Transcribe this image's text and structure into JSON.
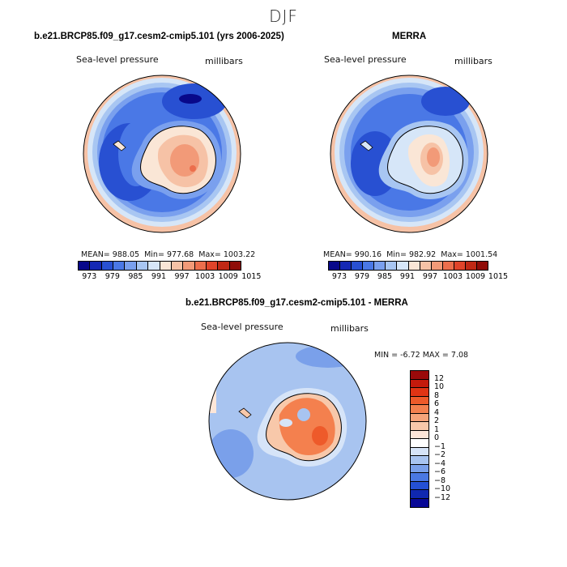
{
  "season": "DJF",
  "panels": {
    "model": {
      "title": "b.e21.BRCP85.f09_g17.cesm2-cmip5.101 (yrs 2006-2025)",
      "variable": "Sea-level pressure",
      "units": "millibars",
      "mean_label": "MEAN=",
      "mean": "988.05",
      "min_label": "Min=",
      "min": "977.68",
      "max_label": "Max=",
      "max": "1003.22"
    },
    "obs": {
      "title": "MERRA",
      "variable": "Sea-level pressure",
      "units": "millibars",
      "mean_label": "MEAN=",
      "mean": "990.16",
      "min_label": "Min=",
      "min": "982.92",
      "max_label": "Max=",
      "max": "1001.54"
    },
    "diff": {
      "title": "b.e21.BRCP85.f09_g17.cesm2-cmip5.101 - MERRA",
      "variable": "Sea-level pressure",
      "units": "millibars",
      "minmax_text": "MIN =   -6.72 MAX =    7.08"
    }
  },
  "colorbar_abs": {
    "labels": [
      "973",
      "979",
      "985",
      "991",
      "997",
      "1003",
      "1009",
      "1015"
    ],
    "colors": [
      "#08088a",
      "#1428b4",
      "#2850d2",
      "#4a78e6",
      "#7aa0ee",
      "#a8c6f2",
      "#d6e6f8",
      "#fae6d6",
      "#f6c2a6",
      "#f29a78",
      "#ec6e4c",
      "#e0442a",
      "#c02814",
      "#900c08"
    ]
  },
  "colorbar_diff": {
    "labels": [
      "12",
      "10",
      "8",
      "6",
      "4",
      "2",
      "1",
      "0",
      "−1",
      "−2",
      "−4",
      "−6",
      "−8",
      "−10",
      "−12"
    ],
    "colors": [
      "#9a0a0a",
      "#c41a0c",
      "#e03414",
      "#ee5a2a",
      "#f4804e",
      "#f6a47a",
      "#f8c8aa",
      "#fde6d8",
      "#ffffff",
      "#d6e4f8",
      "#a8c4f0",
      "#7aa0ea",
      "#4a78e2",
      "#2450d4",
      "#1028b0",
      "#080896"
    ]
  },
  "colors": {
    "land_warm": "#f2a07a",
    "ocean_blue": "#3e6fe0",
    "deep_blue": "#1a3cc0"
  }
}
